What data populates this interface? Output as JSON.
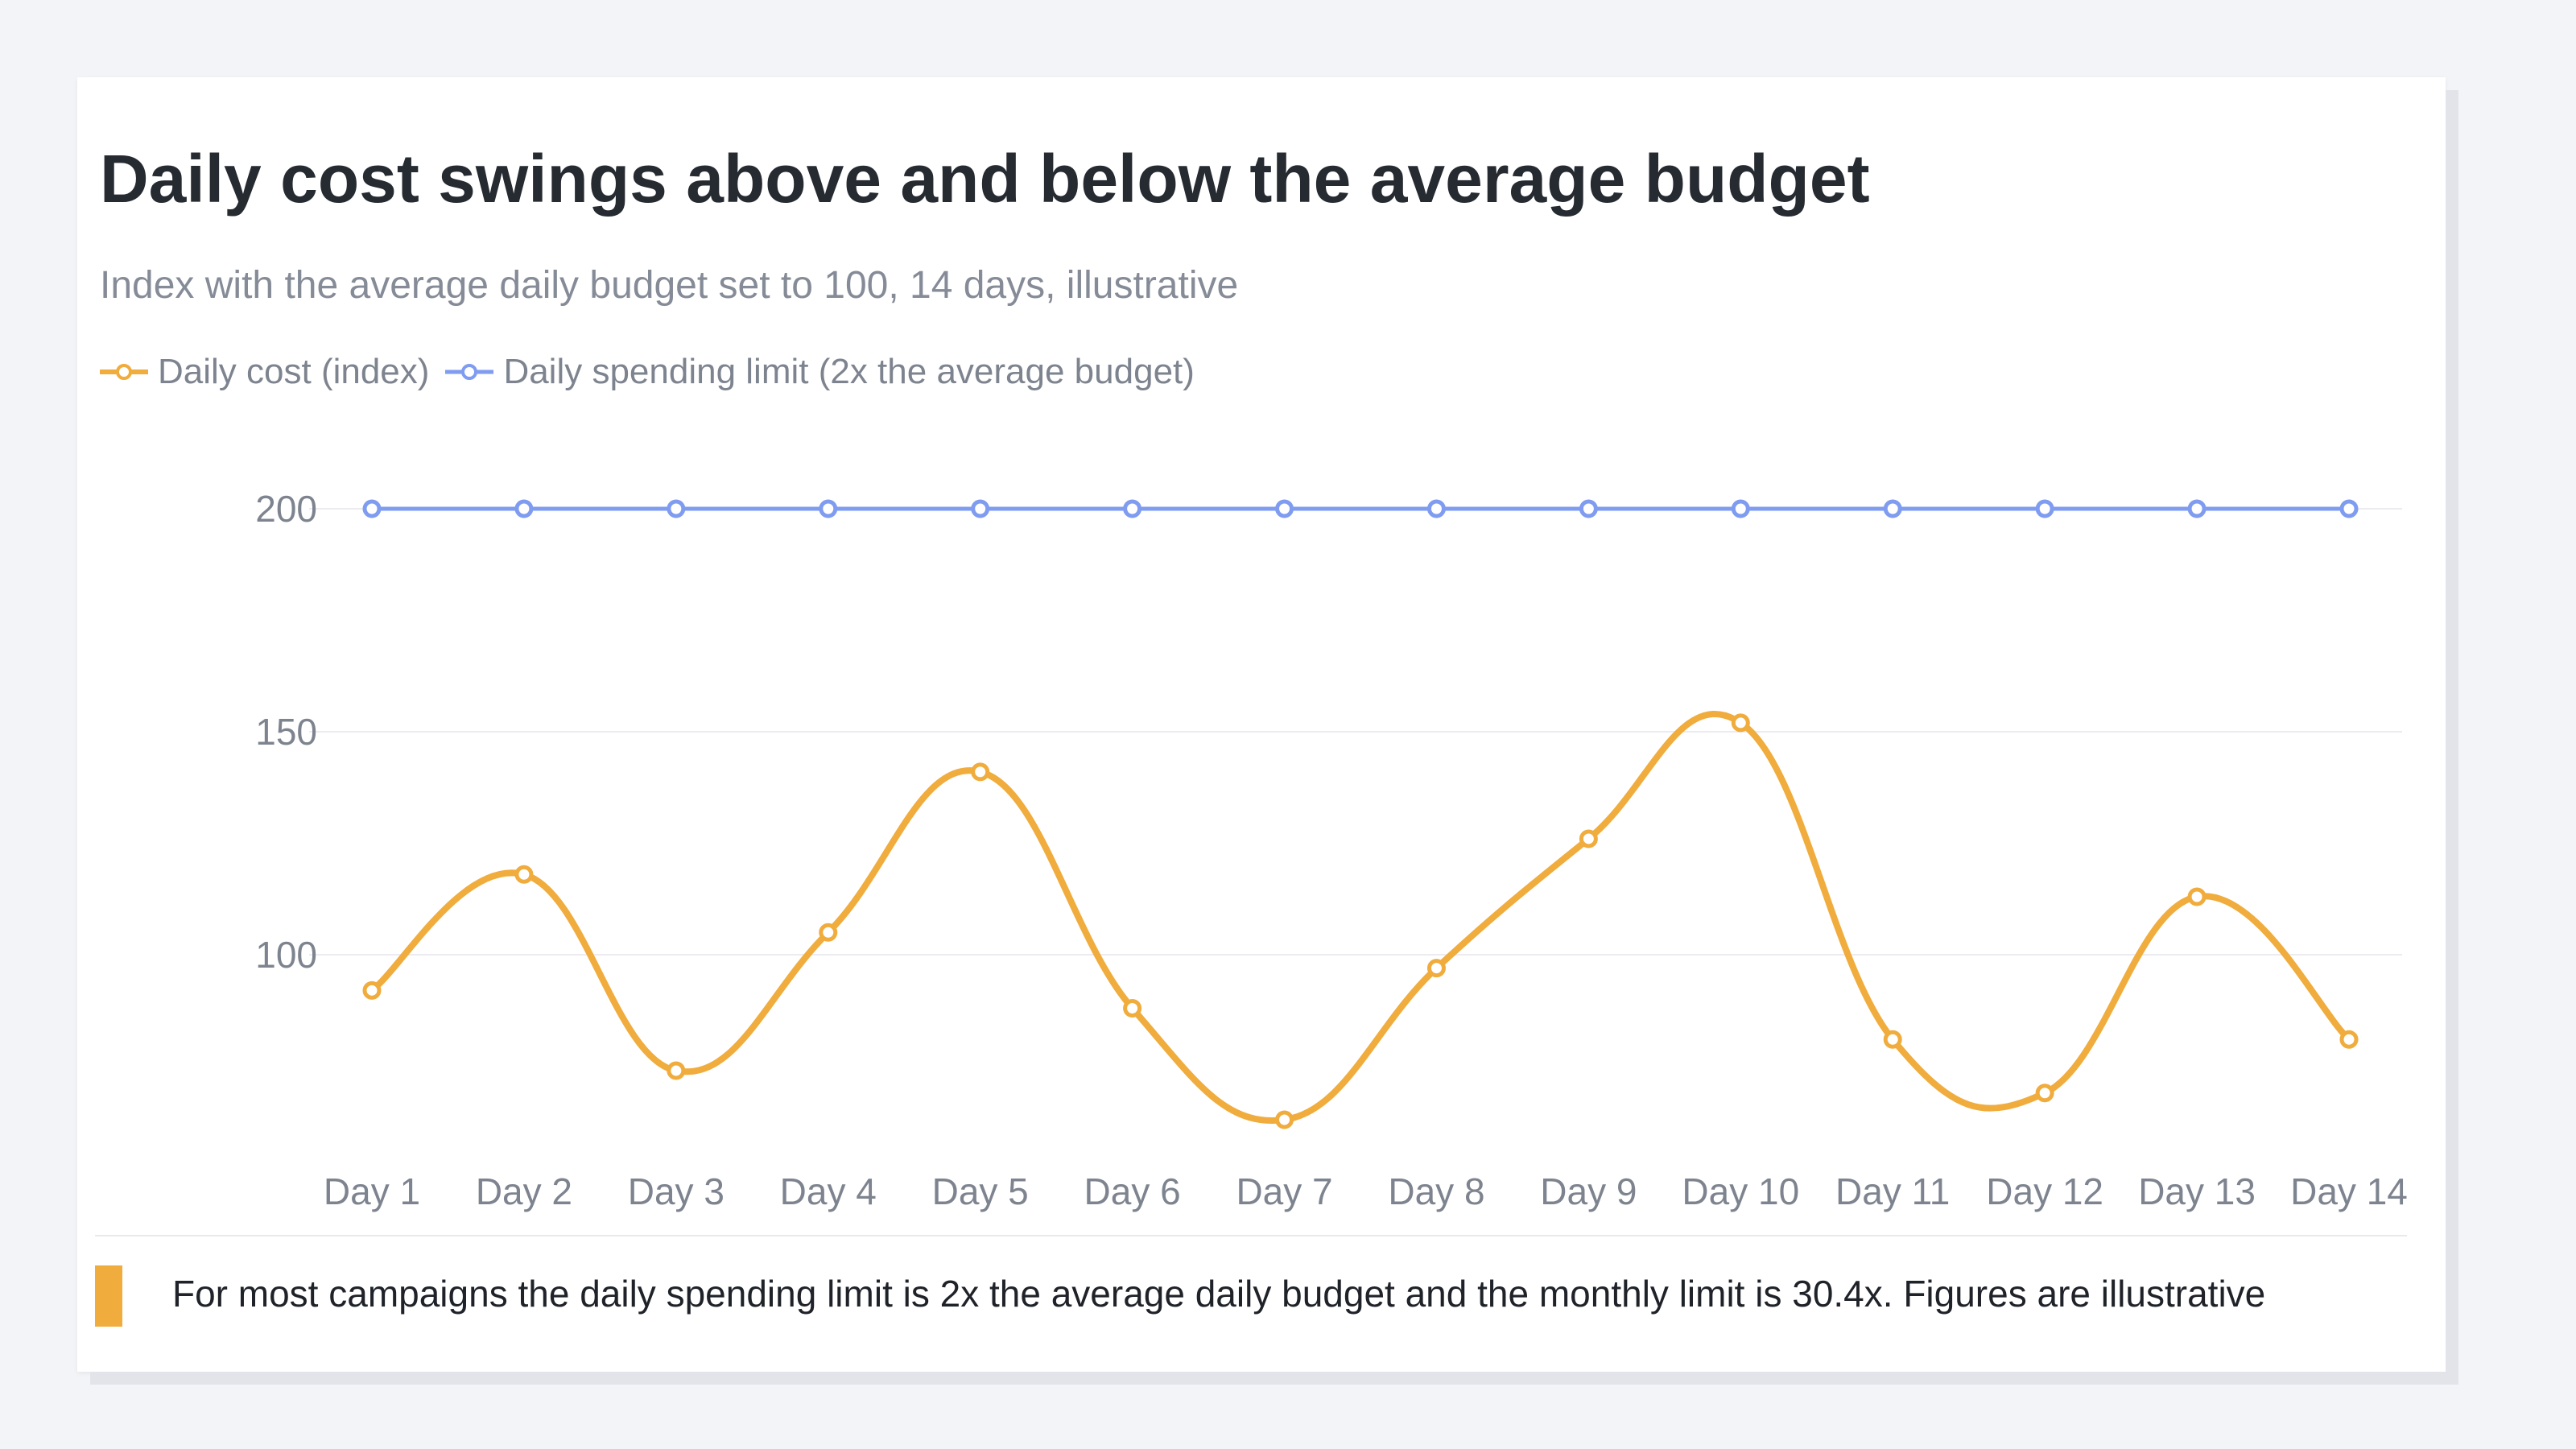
{
  "title": "Daily cost swings above and below the average budget",
  "subtitle": "Index with the average daily budget set to 100, 14 days, illustrative",
  "note": "For most campaigns the daily spending limit is 2x the average daily budget and the monthly limit is 30.4x. Figures are illustrative",
  "colors": {
    "cost": "#f0ac3c",
    "limit": "#7f9cf0",
    "grid": "#ececf0",
    "tick": "#7e848f",
    "note_accent": "#f0ac3c"
  },
  "chart_data": {
    "type": "line",
    "categories": [
      "Day 1",
      "Day 2",
      "Day 3",
      "Day 4",
      "Day 5",
      "Day 6",
      "Day 7",
      "Day 8",
      "Day 9",
      "Day 10",
      "Day 11",
      "Day 12",
      "Day 13",
      "Day 14"
    ],
    "series": [
      {
        "name": "Daily cost (index)",
        "color": "#f0ac3c",
        "smooth": true,
        "values": [
          92,
          118,
          74,
          105,
          141,
          88,
          63,
          97,
          126,
          152,
          81,
          69,
          113,
          81
        ]
      },
      {
        "name": "Daily spending limit (2x the average budget)",
        "color": "#7f9cf0",
        "smooth": false,
        "values": [
          200,
          200,
          200,
          200,
          200,
          200,
          200,
          200,
          200,
          200,
          200,
          200,
          200,
          200
        ]
      }
    ],
    "y_ticks": [
      100,
      150,
      200
    ],
    "ylim": [
      50,
      200
    ],
    "grid": true,
    "legend_position": "top-left",
    "xlabel": "",
    "ylabel": ""
  }
}
